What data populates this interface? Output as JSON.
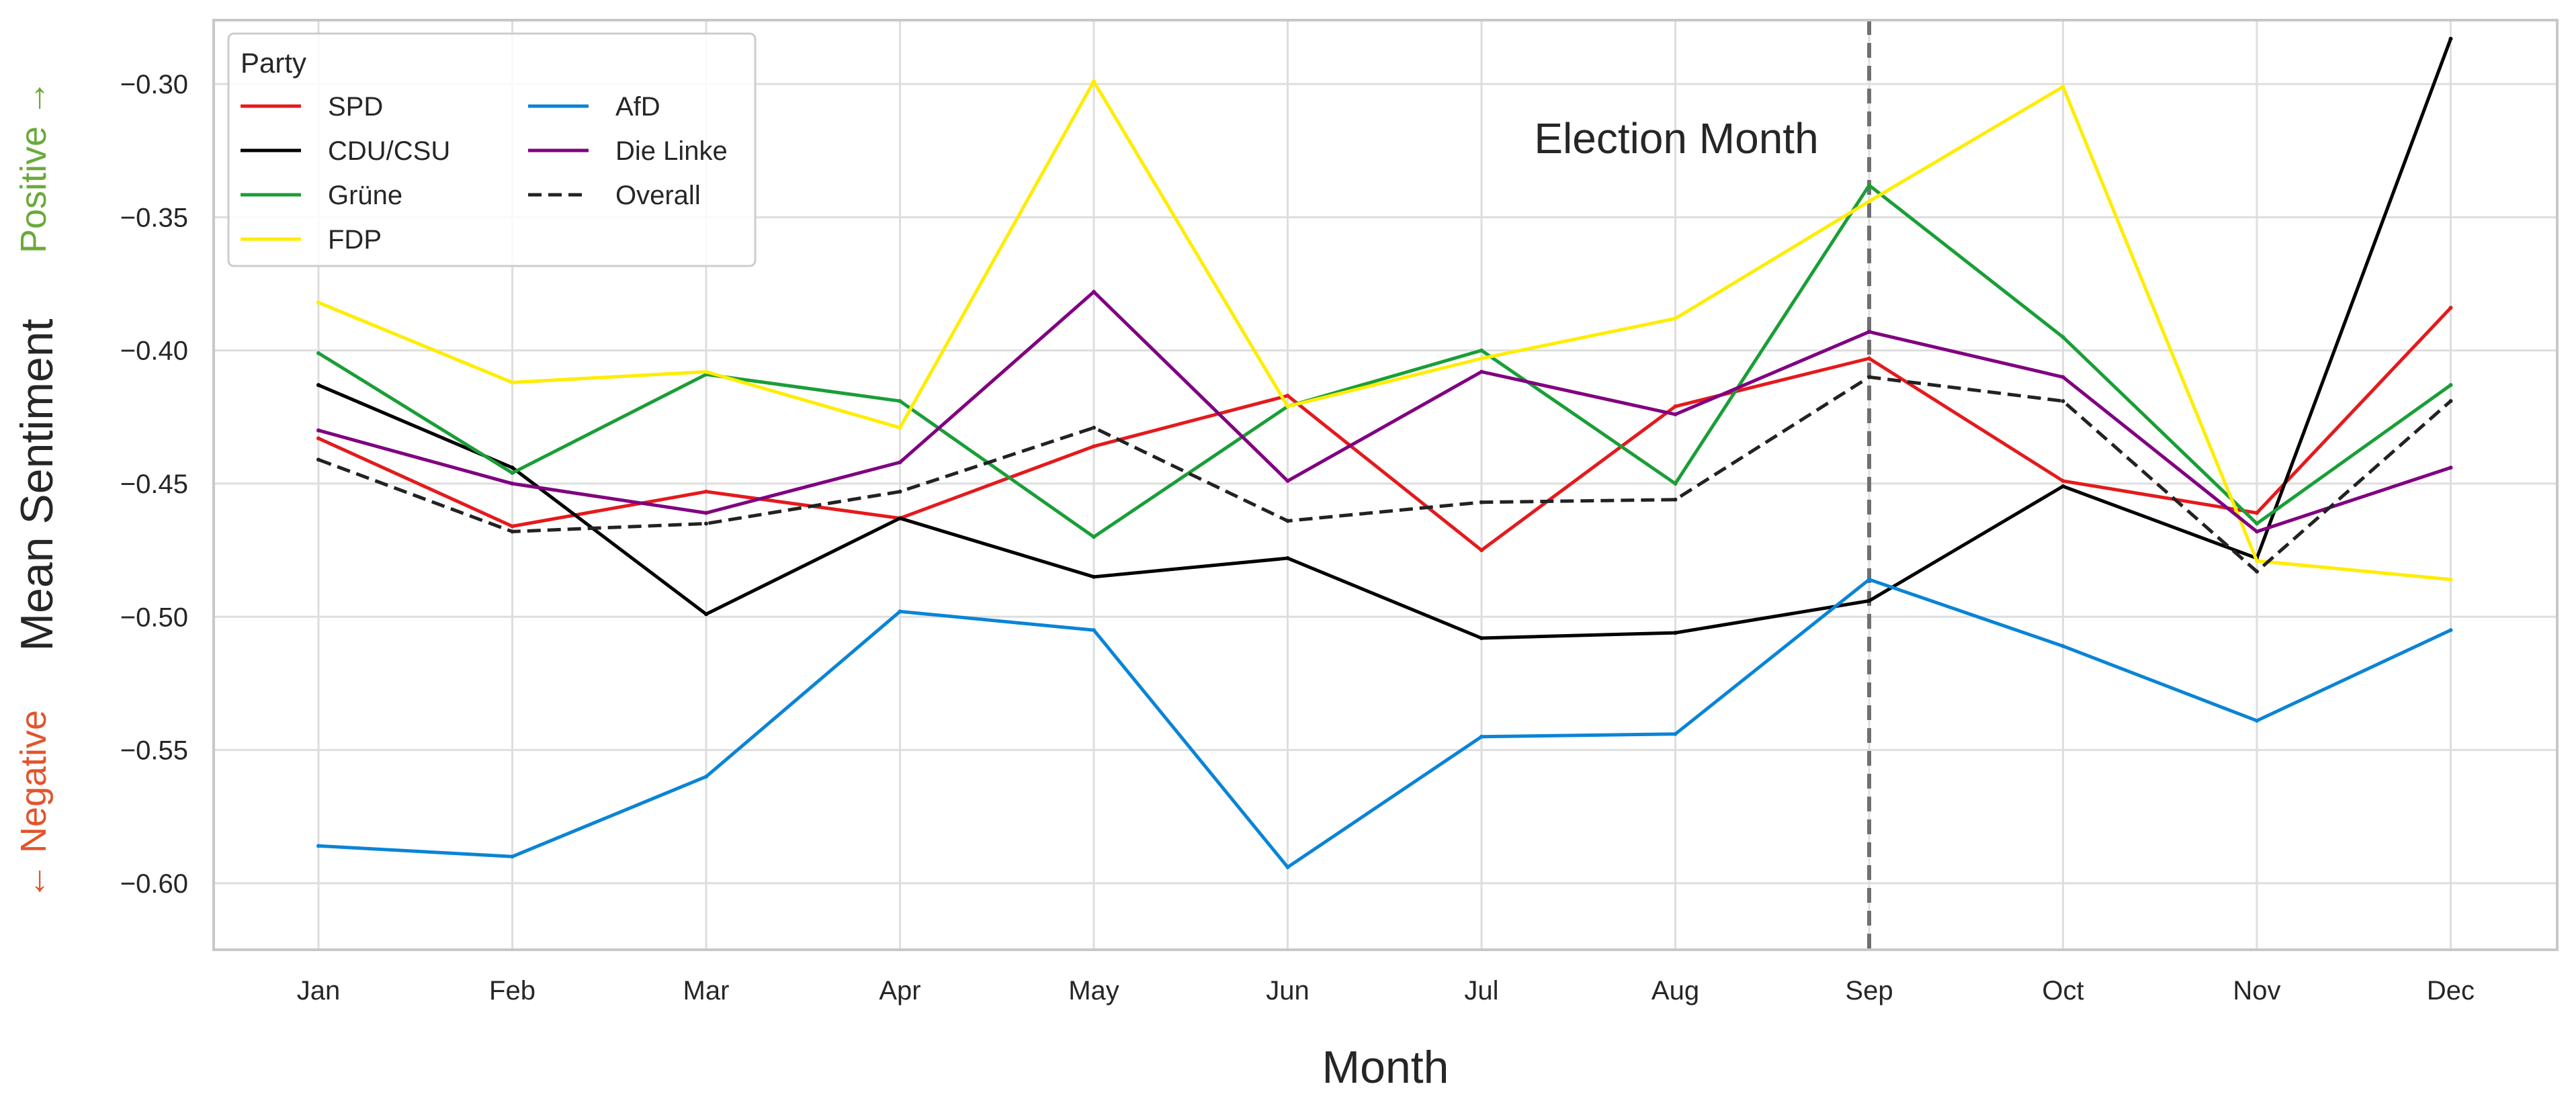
{
  "chart_data": {
    "type": "line",
    "categories": [
      "Jan",
      "Feb",
      "Mar",
      "Apr",
      "May",
      "Jun",
      "Jul",
      "Aug",
      "Sep",
      "Oct",
      "Nov",
      "Dec"
    ],
    "xlabel": "Month",
    "ylabel": "Mean Sentiment",
    "ylabel_positive": "Positive →",
    "ylabel_negative": "← Negative",
    "ylim": [
      -0.625,
      -0.276
    ],
    "yticks": [
      -0.3,
      -0.35,
      -0.4,
      -0.45,
      -0.5,
      -0.55,
      -0.6
    ],
    "grid": true,
    "legend": {
      "title": "Party",
      "placement": "top-left",
      "columns": 2
    },
    "annotation": {
      "text": "Election Month",
      "x": "Sep"
    },
    "series": [
      {
        "name": "SPD",
        "color": "#e41a1c",
        "dash": "solid",
        "values": [
          -0.433,
          -0.466,
          -0.453,
          -0.463,
          -0.436,
          -0.417,
          -0.475,
          -0.421,
          -0.403,
          -0.449,
          -0.461,
          -0.384
        ]
      },
      {
        "name": "CDU/CSU",
        "color": "#000000",
        "dash": "solid",
        "values": [
          -0.413,
          -0.444,
          -0.499,
          -0.463,
          -0.485,
          -0.478,
          -0.508,
          -0.506,
          -0.494,
          -0.451,
          -0.478,
          -0.283
        ]
      },
      {
        "name": "Grüne",
        "color": "#1a9e37",
        "dash": "solid",
        "values": [
          -0.401,
          -0.446,
          -0.409,
          -0.419,
          -0.47,
          -0.421,
          -0.4,
          -0.45,
          -0.338,
          -0.395,
          -0.465,
          -0.413
        ]
      },
      {
        "name": "FDP",
        "color": "#ffed00",
        "dash": "solid",
        "values": [
          -0.382,
          -0.412,
          -0.408,
          -0.429,
          -0.299,
          -0.421,
          -0.403,
          -0.388,
          -0.344,
          -0.301,
          -0.479,
          -0.486
        ]
      },
      {
        "name": "AfD",
        "color": "#0a84d6",
        "dash": "solid",
        "values": [
          -0.586,
          -0.59,
          -0.56,
          -0.498,
          -0.505,
          -0.594,
          -0.545,
          -0.544,
          -0.486,
          -0.511,
          -0.539,
          -0.505
        ]
      },
      {
        "name": "Die Linke",
        "color": "#800080",
        "dash": "solid",
        "values": [
          -0.43,
          -0.45,
          -0.461,
          -0.442,
          -0.378,
          -0.449,
          -0.408,
          -0.424,
          -0.393,
          -0.41,
          -0.468,
          -0.444
        ]
      },
      {
        "name": "Overall",
        "color": "#222222",
        "dash": "dashed",
        "values": [
          -0.441,
          -0.468,
          -0.465,
          -0.453,
          -0.429,
          -0.464,
          -0.457,
          -0.456,
          -0.41,
          -0.419,
          -0.483,
          -0.419
        ]
      }
    ]
  }
}
